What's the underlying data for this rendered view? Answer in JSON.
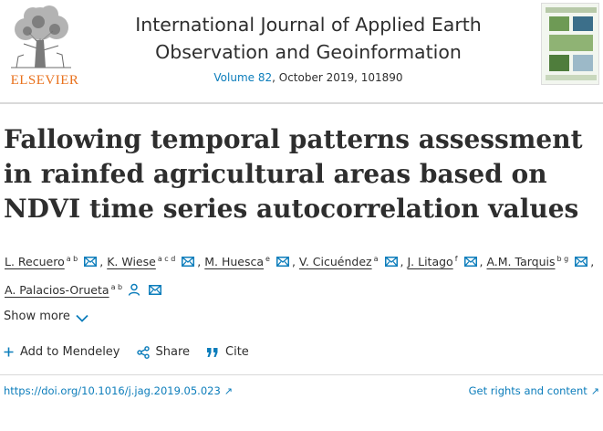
{
  "header": {
    "publisher": "ELSEVIER",
    "journal_title": "International Journal of Applied Earth Observation and Geoinformation",
    "volume": "Volume 82",
    "meta_rest": ", October 2019, 101890"
  },
  "article": {
    "title": "Fallowing temporal patterns assessment in rainfed agricultural areas based on NDVI time series autocorrelation values",
    "authors": [
      {
        "name": "L. Recuero",
        "sup": "a b"
      },
      {
        "name": "K. Wiese",
        "sup": "a c d"
      },
      {
        "name": "M. Huesca",
        "sup": "e"
      },
      {
        "name": "V. Cicuéndez",
        "sup": "a"
      },
      {
        "name": "J. Litago",
        "sup": "f"
      },
      {
        "name": "A.M. Tarquis",
        "sup": "b g"
      },
      {
        "name": "A. Palacios-Orueta",
        "sup": "a b"
      }
    ],
    "show_more": "Show more",
    "actions": {
      "mendeley": "Add to Mendeley",
      "share": "Share",
      "cite": "Cite"
    },
    "doi": "https://doi.org/10.1016/j.jag.2019.05.023",
    "rights": "Get rights and content"
  },
  "colors": {
    "link": "#0c7dbb",
    "elsevier_orange": "#e9711c",
    "text": "#2e2e2e"
  }
}
